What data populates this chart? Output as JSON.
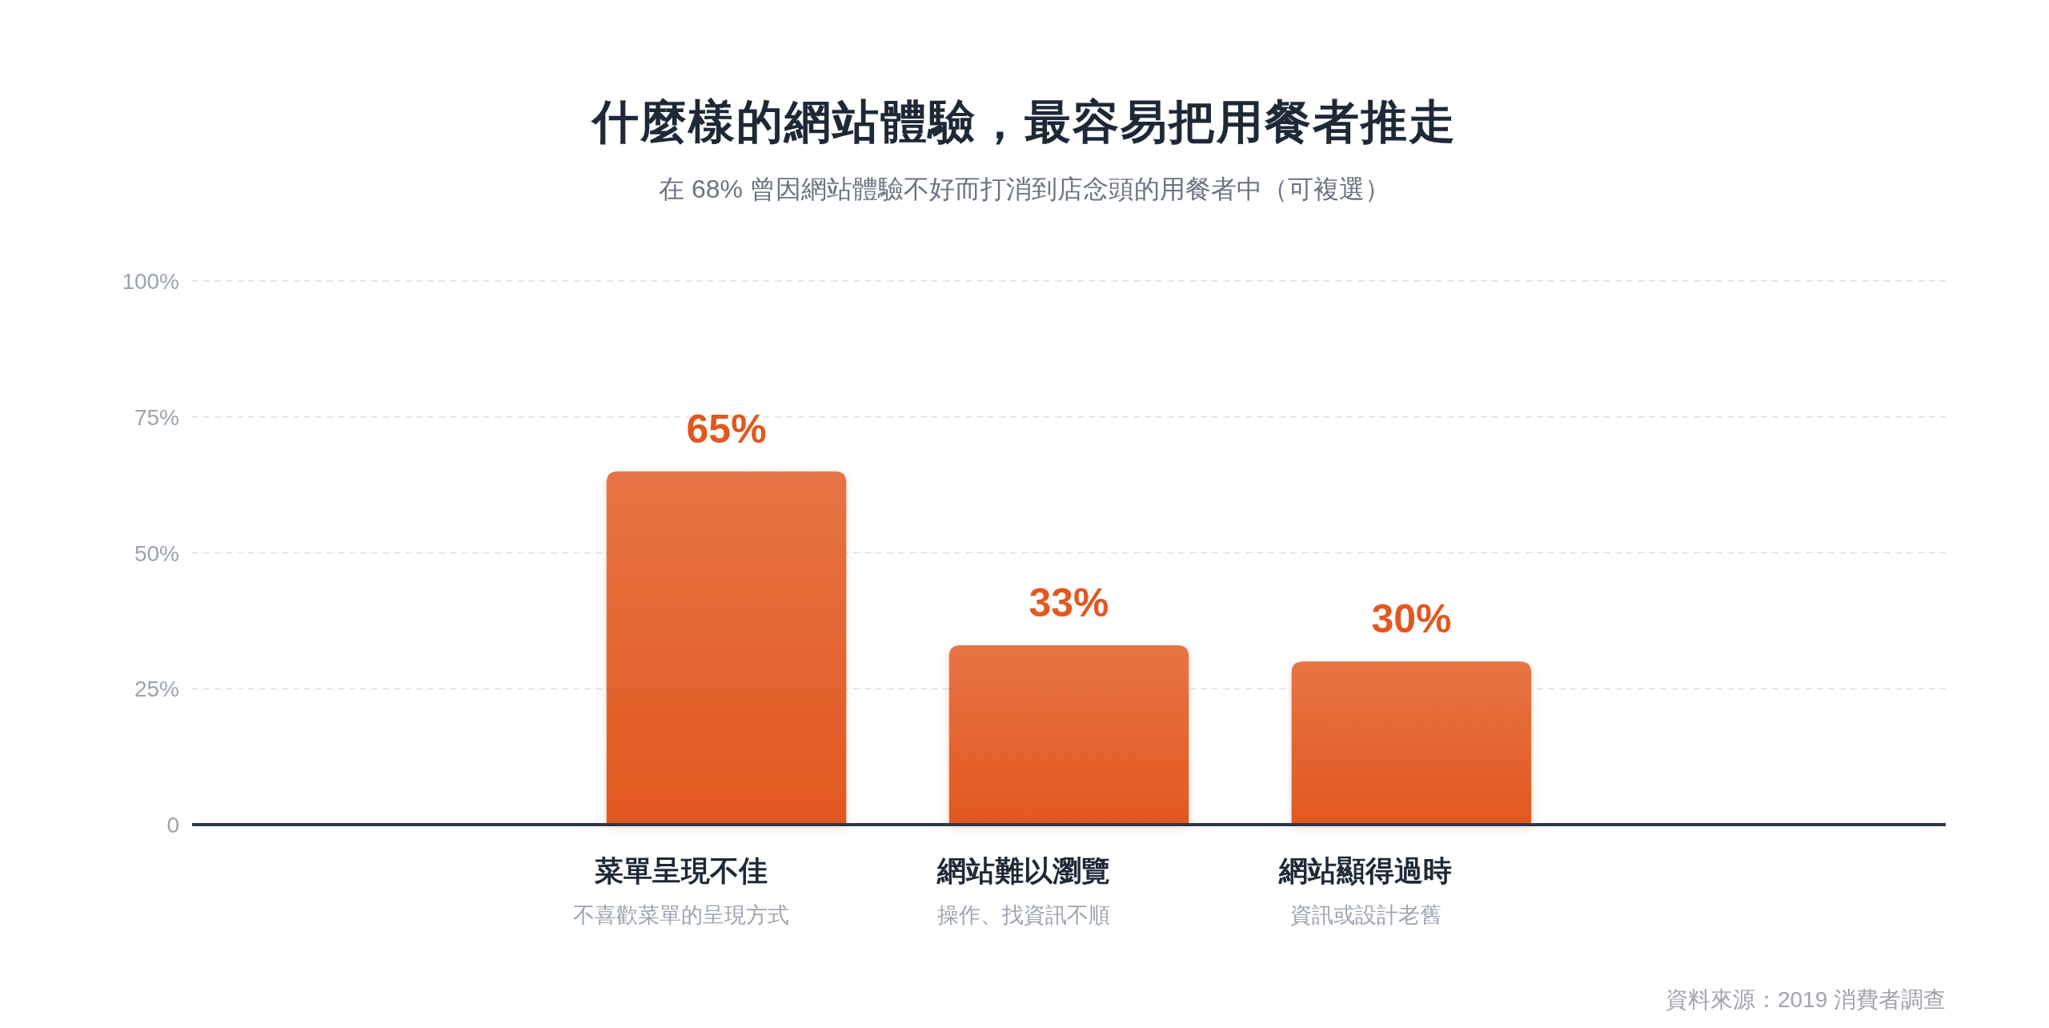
{
  "chart_data": {
    "type": "bar",
    "title": "什麼樣的網站體驗，最容易把用餐者推走",
    "subtitle": "在 68% 曾因網站體驗不好而打消到店念頭的用餐者中（可複選）",
    "categories": [
      "菜單呈現不佳",
      "網站難以瀏覽",
      "網站顯得過時"
    ],
    "values": [
      65,
      33,
      30
    ],
    "value_labels": [
      "65%",
      "33%",
      "30%"
    ],
    "color": "#e2581f",
    "ylim": [
      0,
      100
    ],
    "yticks": [
      0,
      {
        "value": 25,
        "label": "25%"
      },
      {
        "value": 50,
        "label": "50%"
      },
      {
        "value": 75,
        "label": "75%"
      },
      {
        "value": 100,
        "label": "100%"
      }
    ],
    "grid": "y",
    "annotations": [
      "不喜歡菜單的呈現方式",
      "操作、找資訊不順",
      "資訊或設計老舊",
      "資料來源：2019 消費者調查"
    ]
  }
}
